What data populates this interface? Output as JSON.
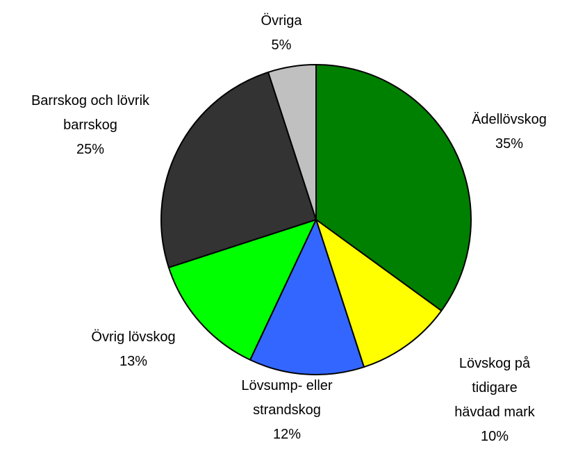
{
  "chart_data": {
    "type": "pie",
    "categories": [
      "Ädellövskog",
      "Lövskog på tidigare\nhävdad mark",
      "Lövsump- eller\nstrandskog",
      "Övrig lövskog",
      "Barrskog och lövrik\nbarrskog",
      "Övriga"
    ],
    "values": [
      35,
      10,
      12,
      13,
      25,
      5
    ],
    "value_labels": [
      "35%",
      "10%",
      "12%",
      "13%",
      "25%",
      "5%"
    ],
    "colors": [
      "#008000",
      "#ffff00",
      "#3366ff",
      "#00ff00",
      "#333333",
      "#c0c0c0"
    ]
  }
}
